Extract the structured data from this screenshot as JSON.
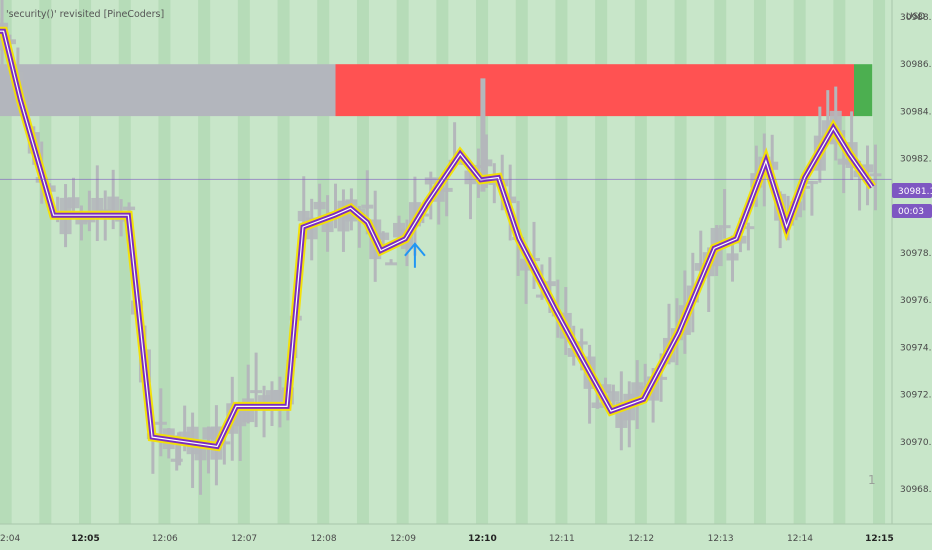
{
  "indicator_title": "'security()' revisited [PineCoders]",
  "currency": "USD",
  "last_price_label": "30981.12",
  "countdown_label": "00:03",
  "pane_number": "1",
  "colors": {
    "background": "#c8e6c9",
    "column_shade": "#b3d9b5",
    "bars": "#b4b7bb",
    "htf_glow": "#f5e000",
    "htf_line": "#7b2cbf",
    "htf_core": "#ffffff",
    "band_gray": "#b3b6bd",
    "band_red": "#ff5252",
    "band_green": "#4caf50",
    "last_price": "#7e57c2",
    "arrow": "#2196f3"
  },
  "chart_data": {
    "type": "line",
    "ylim": [
      30967,
      30989
    ],
    "y_ticks": [
      30968,
      30970,
      30972,
      30974,
      30976,
      30978,
      30980,
      30982,
      30984,
      30986,
      30988
    ],
    "y_tick_labels": [
      "30968.00",
      "30970.00",
      "30972.00",
      "30974.00",
      "30976.00",
      "30978.00",
      "",
      "30982.00",
      "30984.00",
      "30986.00",
      "30988.00"
    ],
    "x_ticks": [
      {
        "t": 4,
        "label": "2:04",
        "bold": false
      },
      {
        "t": 5,
        "label": "12:05",
        "bold": true
      },
      {
        "t": 6,
        "label": "12:06",
        "bold": false
      },
      {
        "t": 7,
        "label": "12:07",
        "bold": false
      },
      {
        "t": 8,
        "label": "12:08",
        "bold": false
      },
      {
        "t": 9,
        "label": "12:09",
        "bold": false
      },
      {
        "t": 10,
        "label": "12:10",
        "bold": true
      },
      {
        "t": 11,
        "label": "12:11",
        "bold": false
      },
      {
        "t": 12,
        "label": "12:12",
        "bold": false
      },
      {
        "t": 13,
        "label": "12:13",
        "bold": false
      },
      {
        "t": 14,
        "label": "12:14",
        "bold": false
      },
      {
        "t": 15,
        "label": "12:15",
        "bold": true
      }
    ],
    "last_price": 30981.12,
    "bands": [
      {
        "t0": 3.5,
        "t1": 8.15,
        "color": "gray",
        "y_top": 30986.0,
        "y_bottom": 30983.8
      },
      {
        "t0": 8.15,
        "t1": 14.68,
        "color": "red",
        "y_top": 30986.0,
        "y_bottom": 30983.8
      },
      {
        "t0": 14.68,
        "t1": 14.91,
        "color": "green",
        "y_top": 30986.0,
        "y_bottom": 30983.8
      }
    ],
    "htf_series": [
      [
        3.5,
        30987.4
      ],
      [
        3.97,
        30987.4
      ],
      [
        4.18,
        30984.5
      ],
      [
        4.6,
        30979.6
      ],
      [
        5.54,
        30979.6
      ],
      [
        5.84,
        30970.2
      ],
      [
        6.66,
        30969.8
      ],
      [
        6.9,
        30971.5
      ],
      [
        7.54,
        30971.5
      ],
      [
        7.74,
        30979.1
      ],
      [
        8.14,
        30979.6
      ],
      [
        8.34,
        30979.9
      ],
      [
        8.55,
        30979.3
      ],
      [
        8.72,
        30978.1
      ],
      [
        9.03,
        30978.6
      ],
      [
        9.3,
        30980.1
      ],
      [
        9.72,
        30982.2
      ],
      [
        9.98,
        30981.1
      ],
      [
        10.2,
        30981.2
      ],
      [
        10.46,
        30978.6
      ],
      [
        10.92,
        30975.6
      ],
      [
        11.24,
        30973.6
      ],
      [
        11.62,
        30971.3
      ],
      [
        12.03,
        30971.8
      ],
      [
        12.47,
        30974.6
      ],
      [
        12.92,
        30978.2
      ],
      [
        13.2,
        30978.6
      ],
      [
        13.57,
        30981.9
      ],
      [
        13.83,
        30979.1
      ],
      [
        14.06,
        30981.2
      ],
      [
        14.42,
        30983.3
      ],
      [
        14.62,
        30982.2
      ],
      [
        14.91,
        30980.8
      ]
    ],
    "arrow_marker": {
      "t": 9.15,
      "y": 30978.9
    },
    "lowest_candle": {
      "t": 6.18,
      "low": 30969.0
    }
  }
}
